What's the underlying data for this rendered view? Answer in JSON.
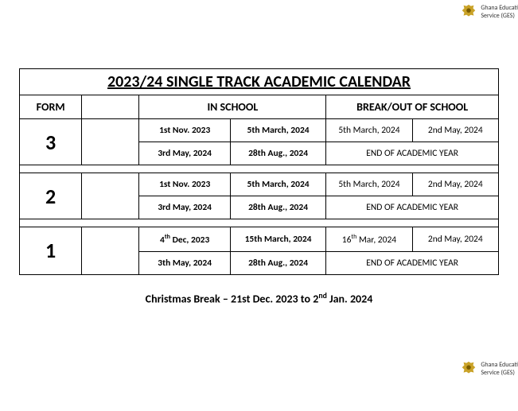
{
  "org": {
    "name_line1": "Ghana Educati",
    "name_line2": "Service (GES)"
  },
  "title": "2023/24 SINGLE TRACK ACADEMIC CALENDAR",
  "headers": {
    "form": "FORM",
    "in_school": "IN SCHOOL",
    "break": "BREAK/OUT OF SCHOOL"
  },
  "forms": [
    {
      "label": "3",
      "rows": [
        {
          "in1": "1st Nov. 2023",
          "in2": "5th March, 2024",
          "out1": "5th March, 2024",
          "out2": "2nd May, 2024",
          "end": null
        },
        {
          "in1": "3rd May, 2024",
          "in2": "28th Aug., 2024",
          "out1": null,
          "out2": null,
          "end": "END OF ACADEMIC YEAR"
        }
      ]
    },
    {
      "label": "2",
      "rows": [
        {
          "in1": "1st Nov. 2023",
          "in2": "5th March, 2024",
          "out1": "5th March, 2024",
          "out2": "2nd May, 2024",
          "end": null
        },
        {
          "in1": "3rd May, 2024",
          "in2": "28th Aug., 2024",
          "out1": null,
          "out2": null,
          "end": "END OF ACADEMIC YEAR"
        }
      ]
    },
    {
      "label": "1",
      "rows": [
        {
          "in1_html": "4<sup>th</sup> Dec, 2023",
          "in2": "15th March, 2024",
          "out1_html": "16<sup>th</sup> Mar, 2024",
          "out2": "2nd May, 2024",
          "end": null
        },
        {
          "in1": "3th May, 2024",
          "in2": "28th Aug., 2024",
          "out1": null,
          "out2": null,
          "end": "END OF ACADEMIC YEAR"
        }
      ]
    }
  ],
  "footer_html": "Christmas Break – 21st Dec. 2023 to 2<sup>nd</sup> Jan. 2024",
  "colors": {
    "border": "#000000",
    "text": "#000000",
    "background": "#ffffff"
  },
  "column_widths_pct": [
    13,
    12,
    19,
    20,
    18,
    18
  ]
}
